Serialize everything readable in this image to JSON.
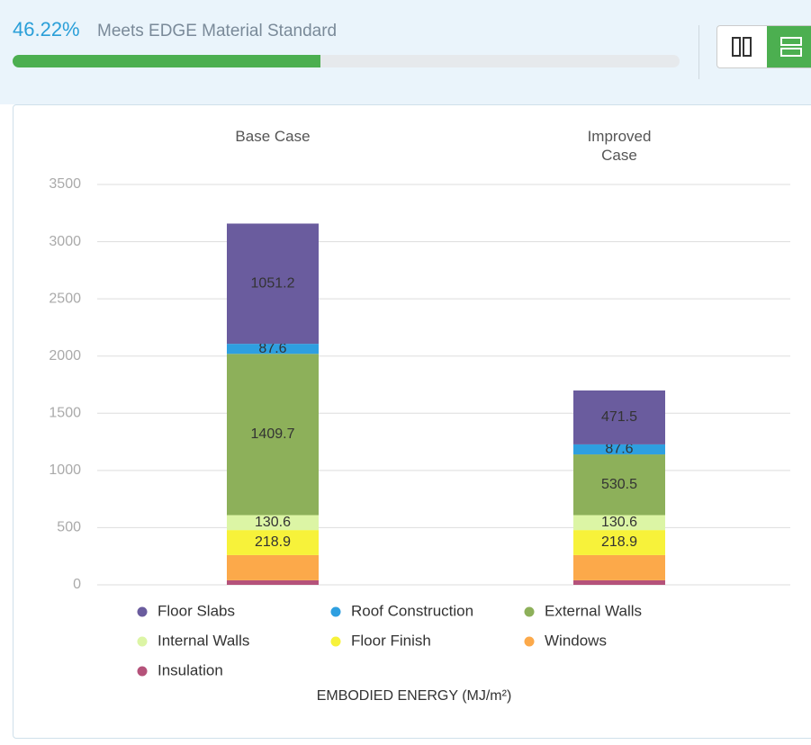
{
  "header": {
    "progress": 46.22,
    "progress_label": "46.22%",
    "caption": "Meets EDGE Material Standard"
  },
  "chart_data": {
    "type": "stacked_bar",
    "categories": [
      "Base Case",
      "Improved Case"
    ],
    "series": [
      {
        "name": "Insulation",
        "color": "#b5527a",
        "values": [
          40,
          40
        ],
        "value_labels": [
          null,
          null
        ]
      },
      {
        "name": "Windows",
        "color": "#fca94a",
        "values": [
          220,
          220
        ],
        "value_labels": [
          null,
          null
        ]
      },
      {
        "name": "Floor Finish",
        "color": "#f7f23a",
        "values": [
          218.9,
          218.9
        ],
        "value_labels": [
          "218.9",
          "218.9"
        ]
      },
      {
        "name": "Internal Walls",
        "color": "#dcf5a5",
        "values": [
          130.6,
          130.6
        ],
        "value_labels": [
          "130.6",
          "130.6"
        ]
      },
      {
        "name": "External Walls",
        "color": "#8db05a",
        "values": [
          1409.7,
          530.5
        ],
        "value_labels": [
          "1409.7",
          "530.5"
        ]
      },
      {
        "name": "Roof Construction",
        "color": "#2e9fe0",
        "values": [
          87.6,
          87.6
        ],
        "value_labels": [
          "87.6",
          "87.6"
        ]
      },
      {
        "name": "Floor Slabs",
        "color": "#6a5c9e",
        "values": [
          1051.2,
          471.5
        ],
        "value_labels": [
          "1051.2",
          "471.5"
        ]
      }
    ],
    "legend_order": [
      6,
      5,
      4,
      3,
      2,
      1,
      0
    ],
    "ylim": [
      0,
      3500
    ],
    "yticks": [
      0,
      500,
      1000,
      1500,
      2000,
      2500,
      3000,
      3500
    ],
    "grid": true,
    "x_axis_label": "EMBODIED ENERGY (MJ/m²)"
  }
}
